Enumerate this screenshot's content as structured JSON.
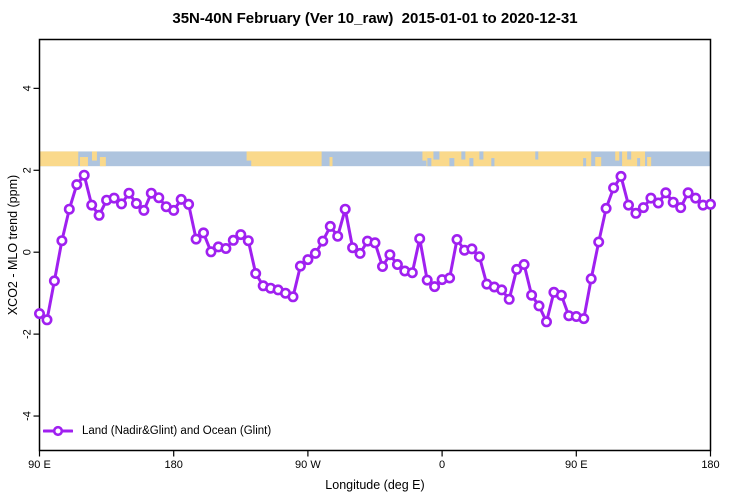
{
  "title": "35N-40N February (Ver 10_raw)  2015-01-01 to 2020-12-31",
  "chart_data": {
    "type": "line",
    "title": "35N-40N February (Ver 10_raw)  2015-01-01 to 2020-12-31",
    "xlabel": "Longitude (deg E)",
    "ylabel": "XCO2 - MLO trend (ppm)",
    "x_axis_note": "longitude axis wraps eastward: 90E -> 180 -> 90W -> 0 -> 90E -> 180 (450 deg span)",
    "x_range_deg": [
      0,
      450
    ],
    "ylim": [
      -4.8,
      5.2
    ],
    "grid": false,
    "legend_position": "bottom-left",
    "x_ticks": [
      {
        "deg": 0,
        "label": "90 E"
      },
      {
        "deg": 90,
        "label": "180"
      },
      {
        "deg": 180,
        "label": "90 W"
      },
      {
        "deg": 270,
        "label": "0"
      },
      {
        "deg": 360,
        "label": "90 E"
      },
      {
        "deg": 450,
        "label": "180"
      }
    ],
    "y_ticks": [
      4,
      2,
      0,
      -2,
      -4
    ],
    "series": [
      {
        "name": "Land (Nadir&Glint) and Ocean (Glint)",
        "color": "#A020F0",
        "marker": "open-circle",
        "x_start_deg": 0,
        "x_step_deg": 5,
        "values": [
          -1.5,
          -1.65,
          -0.7,
          0.28,
          1.05,
          1.65,
          1.88,
          1.15,
          0.9,
          1.27,
          1.32,
          1.18,
          1.44,
          1.19,
          1.02,
          1.44,
          1.33,
          1.11,
          1.02,
          1.29,
          1.17,
          0.32,
          0.47,
          0.01,
          0.13,
          0.09,
          0.29,
          0.43,
          0.28,
          -0.52,
          -0.82,
          -0.88,
          -0.92,
          -1.0,
          -1.09,
          -0.34,
          -0.18,
          -0.03,
          0.27,
          0.63,
          0.39,
          1.05,
          0.11,
          -0.03,
          0.27,
          0.23,
          -0.35,
          -0.06,
          -0.3,
          -0.46,
          -0.5,
          0.33,
          -0.68,
          -0.84,
          -0.67,
          -0.63,
          0.31,
          0.05,
          0.08,
          -0.11,
          -0.78,
          -0.85,
          -0.92,
          -1.15,
          -0.42,
          -0.3,
          -1.05,
          -1.31,
          -1.7,
          -0.98,
          -1.05,
          -1.55,
          -1.57,
          -1.62,
          -0.65,
          0.25,
          1.07,
          1.57,
          1.85,
          1.15,
          0.95,
          1.09,
          1.32,
          1.2,
          1.45,
          1.22,
          1.09,
          1.45,
          1.32,
          1.15,
          1.17
        ]
      }
    ],
    "surface_band": {
      "description": "horizontal strip near y=2.3 showing surface type vs longitude",
      "y_range": [
        2.1,
        2.46
      ],
      "ocean_color": "#AEC4DE",
      "land_color": "#FAD98B",
      "ocean_range_deg": [
        0,
        450
      ],
      "land_segments_deg": [
        [
          0,
          26
        ],
        [
          142,
          189.2
        ],
        [
          259.5,
          370
        ],
        [
          390.7,
          406.1
        ]
      ],
      "land_speckles_deg": [
        [
          27.1,
          32.5
        ],
        [
          35.2,
          38.5
        ],
        [
          40.5,
          44.5
        ],
        [
          138.9,
          142.3
        ],
        [
          194.5,
          196.5
        ],
        [
          256.8,
          259.5
        ],
        [
          372.7,
          376.7
        ],
        [
          386.1,
          388.8
        ],
        [
          407.5,
          410.2
        ]
      ],
      "ocean_speckles_deg": [
        [
          260.1,
          262.8
        ],
        [
          264.2,
          268.2
        ],
        [
          274.9,
          278.2
        ],
        [
          282.9,
          285.6
        ],
        [
          288.3,
          291.0
        ],
        [
          295.0,
          297.7
        ],
        [
          303.0,
          305.1
        ],
        [
          332.5,
          334.5
        ],
        [
          364.6,
          366.6
        ],
        [
          394.1,
          396.8
        ],
        [
          400.8,
          402.8
        ]
      ]
    },
    "legend": {
      "label": "Land (Nadir&Glint) and Ocean (Glint)"
    }
  }
}
